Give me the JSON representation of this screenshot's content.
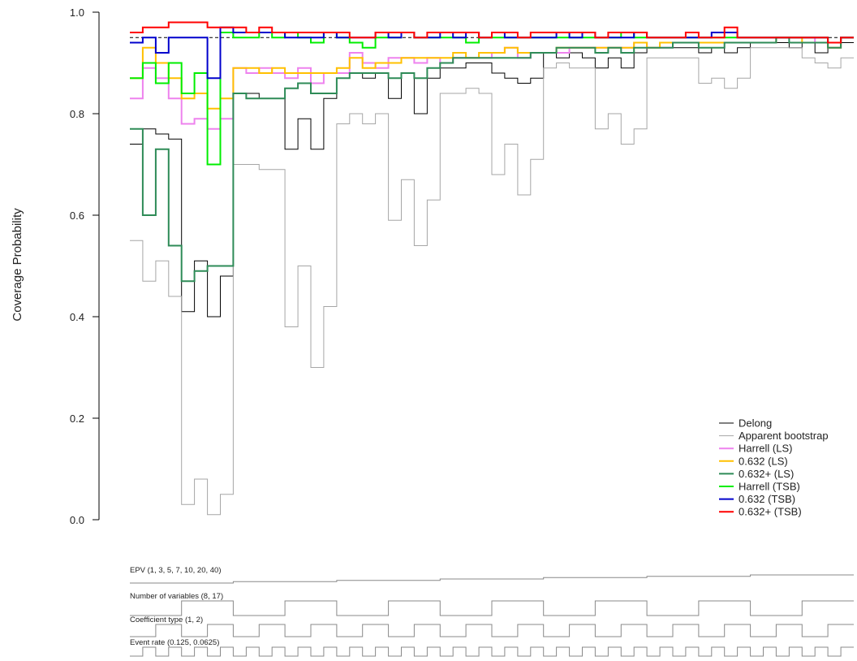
{
  "chart_data": {
    "type": "line",
    "step": true,
    "ylabel": "Coverage Probability",
    "ylim": [
      0,
      1
    ],
    "yticks": [
      0.0,
      0.2,
      0.4,
      0.6,
      0.8,
      1.0
    ],
    "ytick_labels": [
      "0.0",
      "0.2",
      "0.4",
      "0.6",
      "0.8",
      "1.0"
    ],
    "reference_line": 0.95,
    "n_scenarios": 56,
    "legend_position": "bottom-right",
    "series": [
      {
        "name": "Delong",
        "color": "#000000",
        "width": 1,
        "values": [
          0.74,
          0.77,
          0.76,
          0.75,
          0.41,
          0.51,
          0.4,
          0.48,
          0.84,
          0.84,
          0.83,
          0.83,
          0.73,
          0.79,
          0.73,
          0.83,
          0.87,
          0.88,
          0.87,
          0.88,
          0.83,
          0.88,
          0.8,
          0.87,
          0.89,
          0.89,
          0.9,
          0.9,
          0.88,
          0.87,
          0.86,
          0.87,
          0.92,
          0.91,
          0.92,
          0.91,
          0.89,
          0.91,
          0.89,
          0.92,
          0.93,
          0.93,
          0.93,
          0.93,
          0.92,
          0.93,
          0.92,
          0.93,
          0.94,
          0.94,
          0.94,
          0.93,
          0.94,
          0.92,
          0.93,
          0.94
        ]
      },
      {
        "name": "Apparent bootstrap",
        "color": "#a6a6a6",
        "width": 1,
        "values": [
          0.55,
          0.47,
          0.51,
          0.44,
          0.03,
          0.08,
          0.01,
          0.05,
          0.7,
          0.7,
          0.69,
          0.69,
          0.38,
          0.5,
          0.3,
          0.42,
          0.78,
          0.8,
          0.78,
          0.8,
          0.59,
          0.67,
          0.54,
          0.63,
          0.84,
          0.84,
          0.85,
          0.84,
          0.68,
          0.74,
          0.64,
          0.71,
          0.89,
          0.9,
          0.89,
          0.89,
          0.77,
          0.8,
          0.74,
          0.77,
          0.91,
          0.91,
          0.91,
          0.91,
          0.86,
          0.87,
          0.85,
          0.87,
          0.93,
          0.93,
          0.93,
          0.93,
          0.91,
          0.9,
          0.89,
          0.91
        ]
      },
      {
        "name": "Harrell (LS)",
        "color": "#ee82ee",
        "width": 2,
        "values": [
          0.83,
          0.89,
          0.87,
          0.83,
          0.78,
          0.79,
          0.77,
          0.79,
          0.89,
          0.88,
          0.89,
          0.88,
          0.87,
          0.89,
          0.86,
          0.88,
          0.88,
          0.92,
          0.9,
          0.89,
          0.91,
          0.91,
          0.9,
          0.91,
          0.9,
          0.91,
          0.91,
          0.91,
          0.92,
          0.93,
          0.91,
          0.92,
          0.92,
          0.92,
          0.93,
          0.93,
          0.93,
          0.93,
          0.93,
          0.94,
          0.93,
          0.93,
          0.94,
          0.94,
          0.94,
          0.94,
          0.94,
          0.94,
          0.94,
          0.94,
          0.95,
          0.95,
          0.95,
          0.94,
          0.93,
          0.95
        ]
      },
      {
        "name": "0.632 (LS)",
        "color": "#ffc000",
        "width": 2,
        "values": [
          0.87,
          0.93,
          0.9,
          0.87,
          0.83,
          0.84,
          0.81,
          0.83,
          0.89,
          0.89,
          0.88,
          0.89,
          0.88,
          0.88,
          0.88,
          0.88,
          0.89,
          0.91,
          0.89,
          0.9,
          0.9,
          0.91,
          0.91,
          0.91,
          0.91,
          0.92,
          0.91,
          0.92,
          0.92,
          0.93,
          0.92,
          0.92,
          0.92,
          0.93,
          0.93,
          0.93,
          0.93,
          0.93,
          0.93,
          0.94,
          0.93,
          0.94,
          0.94,
          0.94,
          0.94,
          0.94,
          0.94,
          0.94,
          0.94,
          0.94,
          0.95,
          0.95,
          0.94,
          0.94,
          0.93,
          0.95
        ]
      },
      {
        "name": "0.632+ (LS)",
        "color": "#2e8b57",
        "width": 2,
        "values": [
          0.77,
          0.6,
          0.73,
          0.54,
          0.47,
          0.49,
          0.5,
          0.5,
          0.84,
          0.83,
          0.83,
          0.83,
          0.85,
          0.86,
          0.84,
          0.84,
          0.87,
          0.88,
          0.88,
          0.88,
          0.87,
          0.88,
          0.87,
          0.89,
          0.9,
          0.91,
          0.91,
          0.91,
          0.91,
          0.91,
          0.91,
          0.92,
          0.92,
          0.93,
          0.93,
          0.93,
          0.92,
          0.93,
          0.92,
          0.93,
          0.93,
          0.93,
          0.94,
          0.94,
          0.93,
          0.93,
          0.94,
          0.94,
          0.94,
          0.94,
          0.95,
          0.94,
          0.94,
          0.94,
          0.93,
          0.95
        ]
      },
      {
        "name": "Harrell (TSB)",
        "color": "#00ee00",
        "width": 2,
        "values": [
          0.87,
          0.9,
          0.86,
          0.9,
          0.84,
          0.88,
          0.7,
          0.96,
          0.95,
          0.95,
          0.96,
          0.95,
          0.96,
          0.95,
          0.94,
          0.96,
          0.95,
          0.94,
          0.93,
          0.95,
          0.95,
          0.96,
          0.95,
          0.95,
          0.95,
          0.95,
          0.94,
          0.95,
          0.95,
          0.95,
          0.95,
          0.95,
          0.95,
          0.95,
          0.95,
          0.95,
          0.95,
          0.95,
          0.96,
          0.95,
          0.95,
          0.95,
          0.95,
          0.95,
          0.95,
          0.95,
          0.95,
          0.95,
          0.95,
          0.95,
          0.95,
          0.95,
          0.95,
          0.95,
          0.94,
          0.95
        ]
      },
      {
        "name": "0.632 (TSB)",
        "color": "#0000cc",
        "width": 2,
        "values": [
          0.94,
          0.95,
          0.92,
          0.95,
          0.95,
          0.95,
          0.87,
          0.97,
          0.96,
          0.96,
          0.96,
          0.96,
          0.95,
          0.95,
          0.95,
          0.96,
          0.95,
          0.95,
          0.95,
          0.96,
          0.95,
          0.96,
          0.95,
          0.95,
          0.96,
          0.95,
          0.96,
          0.95,
          0.96,
          0.95,
          0.95,
          0.95,
          0.95,
          0.96,
          0.95,
          0.96,
          0.95,
          0.95,
          0.95,
          0.96,
          0.95,
          0.95,
          0.95,
          0.95,
          0.95,
          0.96,
          0.96,
          0.95,
          0.95,
          0.95,
          0.95,
          0.95,
          0.95,
          0.95,
          0.94,
          0.95
        ]
      },
      {
        "name": "0.632+ (TSB)",
        "color": "#ff0000",
        "width": 2,
        "values": [
          0.96,
          0.97,
          0.97,
          0.98,
          0.98,
          0.98,
          0.97,
          0.97,
          0.97,
          0.96,
          0.97,
          0.96,
          0.96,
          0.96,
          0.96,
          0.96,
          0.96,
          0.95,
          0.95,
          0.96,
          0.96,
          0.96,
          0.95,
          0.96,
          0.96,
          0.96,
          0.96,
          0.95,
          0.96,
          0.96,
          0.95,
          0.96,
          0.96,
          0.96,
          0.96,
          0.96,
          0.95,
          0.96,
          0.96,
          0.96,
          0.95,
          0.95,
          0.95,
          0.96,
          0.95,
          0.95,
          0.97,
          0.95,
          0.95,
          0.95,
          0.95,
          0.95,
          0.95,
          0.95,
          0.94,
          0.95
        ]
      }
    ],
    "nested_factors": [
      {
        "label": "EPV (1, 3, 5, 7, 10, 20, 40)",
        "levels": 7,
        "block": 8
      },
      {
        "label": "Number of variables (8, 17)",
        "levels": 2,
        "block": 4
      },
      {
        "label": "Coefficient type (1, 2)",
        "levels": 2,
        "block": 2
      },
      {
        "label": "Event rate (0.125, 0.0625)",
        "levels": 2,
        "block": 1
      }
    ]
  }
}
